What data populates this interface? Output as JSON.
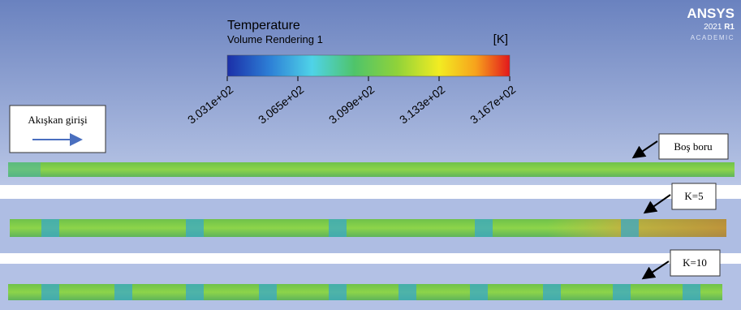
{
  "legend": {
    "title": "Temperature",
    "subtitle": "Volume Rendering 1",
    "unit": "[K]",
    "ticks": [
      "3.031e+02",
      "3.065e+02",
      "3.099e+02",
      "3.133e+02",
      "3.167e+02"
    ]
  },
  "logo": {
    "brand": "ANSYS",
    "year": "2021",
    "release": "R1",
    "edition": "ACADEMIC"
  },
  "annotations": {
    "inlet": "Akışkan girişi",
    "empty_pipe": "Boş boru",
    "k5": "K=5",
    "k10": "K=10"
  }
}
